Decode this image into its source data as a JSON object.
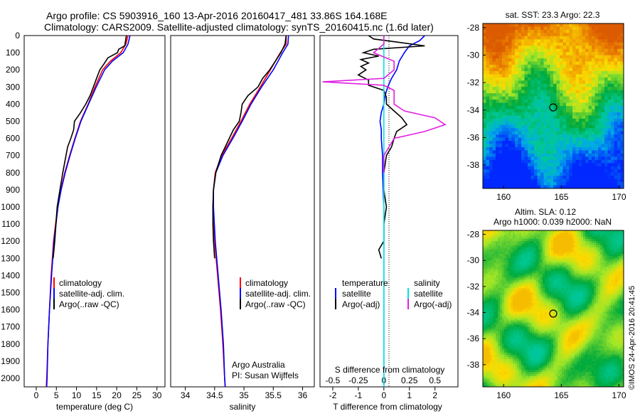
{
  "header": {
    "line1": "Argo profile: CS 5903916_160 13-Apr-2016 20160417_481 33.86S 164.168E",
    "line2": "Climatology: CARS2009. Satellite-adjusted climatology: synTS_20160415.nc (1.6d later)"
  },
  "depth_ticks": [
    "0",
    "100",
    "200",
    "300",
    "400",
    "500",
    "600",
    "700",
    "800",
    "900",
    "1000",
    "1100",
    "1200",
    "1300",
    "1400",
    "1500",
    "1600",
    "1700",
    "1800",
    "1900",
    "2000"
  ],
  "legend_ts": {
    "climatology": "climatology",
    "satellite": "satellite-adj. clim.",
    "argo": "Argo(..raw -QC)"
  },
  "legend_diff": {
    "temperature": "temperature",
    "salinity": "salinity",
    "satellite": "satellite",
    "argo": "Argo(-adj)"
  },
  "credit": {
    "line1": "Argo Australia",
    "line2": "PI: Susan Wijffels"
  },
  "sst_panel": {
    "title": "sat. SST: 23.3 Argo: 22.3"
  },
  "sla_panel": {
    "title1": "Altim. SLA: 0.12",
    "title2": "Argo h1000: 0.039 h2000: NaN"
  },
  "watermark": "©IMOS 24-Apr-2016 20:41:45",
  "colors": {
    "climatology": "#ff0000",
    "satellite": "#0000ff",
    "argo": "#000000",
    "sat_salinity": "#00e5e5",
    "argo_salinity": "#e020e0"
  },
  "chart_data": [
    {
      "type": "line",
      "xlabel": "temperature (deg C)",
      "xticks": [
        "0",
        "5",
        "10",
        "15",
        "20",
        "25",
        "30"
      ],
      "xlim": [
        -3,
        32
      ],
      "ylim": [
        2050,
        0
      ],
      "series": [
        {
          "name": "climatology",
          "depth": [
            0,
            50,
            100,
            150,
            200,
            300,
            400,
            500,
            600,
            700,
            800,
            900,
            1000,
            1200,
            1400,
            1600,
            1800,
            2000,
            2050
          ],
          "values": [
            22.8,
            22.3,
            21.0,
            18.4,
            16.5,
            14.6,
            12.9,
            11.0,
            9.6,
            8.3,
            7.1,
            6.1,
            5.3,
            4.3,
            3.7,
            3.3,
            2.9,
            2.6,
            2.5
          ]
        },
        {
          "name": "satellite-adj. clim.",
          "depth": [
            0,
            50,
            100,
            150,
            200,
            300,
            400,
            500,
            600,
            700,
            800,
            900,
            1000,
            1200,
            1400,
            1600,
            1800,
            2000,
            2050
          ],
          "values": [
            23.3,
            22.8,
            21.6,
            18.9,
            17.0,
            14.9,
            13.0,
            11.1,
            9.7,
            8.4,
            7.2,
            6.2,
            5.4,
            4.4,
            3.8,
            3.3,
            2.9,
            2.7,
            2.6
          ]
        },
        {
          "name": "Argo(..raw -QC)",
          "depth": [
            0,
            60,
            80,
            100,
            130,
            160,
            200,
            250,
            300,
            350,
            400,
            450,
            500,
            550,
            600,
            650,
            700,
            800,
            900,
            1000,
            1100,
            1200,
            1250,
            1300
          ],
          "values": [
            22.4,
            22.0,
            20.5,
            20.2,
            17.8,
            17.0,
            15.8,
            15.0,
            14.2,
            13.4,
            12.3,
            11.0,
            9.5,
            9.3,
            8.6,
            7.8,
            7.4,
            6.6,
            5.9,
            5.2,
            4.9,
            4.6,
            4.4,
            4.2
          ]
        }
      ]
    },
    {
      "type": "line",
      "xlabel": "salinity",
      "xticks": [
        "34",
        "34.5",
        "35",
        "35.5",
        "36"
      ],
      "xlim": [
        33.75,
        36.2
      ],
      "ylim": [
        2050,
        0
      ],
      "series": [
        {
          "name": "climatology",
          "depth": [
            0,
            50,
            100,
            200,
            300,
            400,
            500,
            600,
            700,
            800,
            900,
            1000,
            1200,
            1400,
            1600,
            1800,
            2000,
            2050
          ],
          "values": [
            35.72,
            35.72,
            35.62,
            35.45,
            35.28,
            35.1,
            34.95,
            34.79,
            34.62,
            34.51,
            34.48,
            34.47,
            34.5,
            34.55,
            34.6,
            34.64,
            34.67,
            34.68
          ]
        },
        {
          "name": "satellite-adj. clim.",
          "depth": [
            0,
            50,
            100,
            200,
            300,
            400,
            500,
            600,
            700,
            800,
            900,
            1000,
            1200,
            1400,
            1600,
            1800,
            2000,
            2050
          ],
          "values": [
            35.76,
            35.75,
            35.66,
            35.5,
            35.3,
            35.12,
            34.97,
            34.81,
            34.64,
            34.52,
            34.48,
            34.48,
            34.51,
            34.56,
            34.61,
            34.65,
            34.67,
            34.68
          ]
        },
        {
          "name": "Argo(..raw -QC)",
          "depth": [
            0,
            50,
            100,
            200,
            250,
            300,
            350,
            400,
            450,
            500,
            550,
            600,
            650,
            700,
            800,
            900,
            1000,
            1100,
            1200,
            1300
          ],
          "values": [
            35.72,
            35.7,
            35.63,
            35.44,
            35.32,
            35.24,
            35.07,
            34.97,
            34.95,
            34.92,
            34.82,
            34.75,
            34.68,
            34.61,
            34.52,
            34.48,
            34.47,
            34.47,
            34.48,
            34.5
          ]
        }
      ]
    },
    {
      "type": "line",
      "xlabel": "T difference from climatology",
      "xlabel_top": "S difference from climatology",
      "xticks": [
        "-2",
        "-1",
        "0",
        "1",
        "2"
      ],
      "xticks_top": [
        "-0.5",
        "-0.25",
        "0",
        "0.25",
        "0.5"
      ],
      "xlim": [
        -2.5,
        2.9
      ],
      "ylim": [
        2050,
        0
      ],
      "series": [
        {
          "name": "temperature satellite",
          "depth": [
            0,
            30,
            60,
            100,
            150,
            200,
            250,
            300,
            350,
            400,
            450,
            500,
            550,
            600,
            700,
            800,
            1000,
            1200,
            1500,
            1800,
            2050
          ],
          "values": [
            1.6,
            1.4,
            1.0,
            0.8,
            0.6,
            0.5,
            0.3,
            0.15,
            0.05,
            0.0,
            -0.1,
            -0.15,
            -0.1,
            -0.1,
            -0.05,
            -0.05,
            0.0,
            0.0,
            0.0,
            0.0,
            0.0
          ]
        },
        {
          "name": "temperature Argo(-adj)",
          "depth": [
            0,
            20,
            40,
            60,
            80,
            100,
            120,
            140,
            160,
            180,
            200,
            230,
            260,
            290,
            320,
            360,
            400,
            440,
            480,
            520,
            560,
            600,
            650,
            700,
            800,
            900,
            1000,
            1100,
            1200,
            1250,
            1300
          ],
          "values": [
            -0.6,
            -0.4,
            0.6,
            1.6,
            -0.4,
            -0.8,
            -0.2,
            -0.9,
            -0.6,
            -0.9,
            -0.7,
            -1.0,
            -0.6,
            -0.6,
            0.0,
            0.1,
            0.1,
            0.4,
            0.7,
            0.9,
            0.5,
            0.4,
            0.3,
            0.1,
            0.0,
            0.0,
            0.1,
            0.0,
            0.0,
            -0.2,
            -0.1
          ]
        },
        {
          "name": "salinity satellite",
          "depth": [
            0,
            100,
            200,
            300,
            400,
            500,
            600,
            800,
            1000,
            1500,
            2050
          ],
          "values": [
            0.0,
            0.0,
            0.0,
            0.0,
            0.0,
            0.0,
            0.0,
            0.0,
            0.0,
            0.0,
            0.0
          ]
        },
        {
          "name": "salinity Argo(-adj)",
          "depth": [
            0,
            50,
            100,
            150,
            200,
            250,
            270,
            290,
            320,
            360,
            400,
            440,
            480,
            520,
            560,
            600,
            700,
            800
          ],
          "values": [
            0.0,
            0.0,
            -0.1,
            0.1,
            0.1,
            0.0,
            -0.6,
            0.0,
            0.1,
            0.1,
            0.1,
            0.2,
            0.5,
            0.6,
            0.4,
            0.1,
            0.0,
            0.0
          ]
        }
      ]
    }
  ],
  "maps": [
    {
      "type": "heatmap",
      "xticks": [
        "160",
        "165",
        "170"
      ],
      "yticks": [
        "-28",
        "-30",
        "-32",
        "-34",
        "-36",
        "-38"
      ],
      "marker": {
        "lon": 164.168,
        "lat": -33.86
      }
    },
    {
      "type": "heatmap",
      "xticks": [
        "160",
        "165",
        "170"
      ],
      "yticks": [
        "-28",
        "-30",
        "-32",
        "-34",
        "-36",
        "-38"
      ],
      "marker": {
        "lon": 164.168,
        "lat": -33.86
      }
    }
  ]
}
